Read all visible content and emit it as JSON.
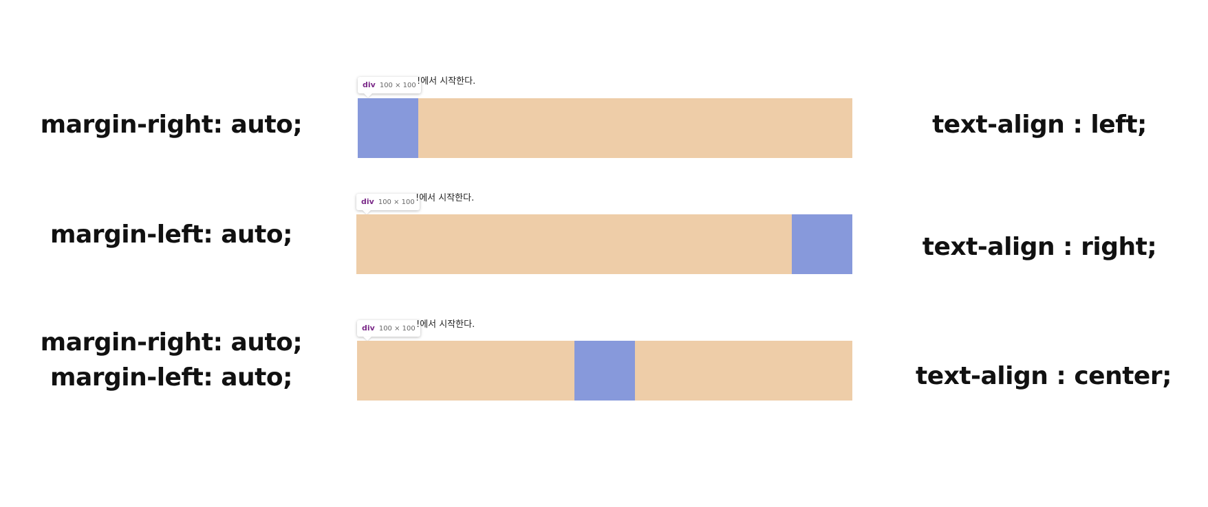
{
  "left_labels": {
    "row1": "margin-right: auto;",
    "row2": "margin-left: auto;",
    "row3_line1": "margin-right: auto;",
    "row3_line2": "margin-left: auto;"
  },
  "right_labels": {
    "row1": "text-align : left;",
    "row2": "text-align : right;",
    "row3": "text-align : center;"
  },
  "rows": [
    {
      "tooltip_tag": "div",
      "tooltip_dims": "100 × 100",
      "caption": "!에서 시작한다.",
      "box_position": "left"
    },
    {
      "tooltip_tag": "div",
      "tooltip_dims": "100 × 100",
      "caption": "!에서 시작한다.",
      "box_position": "right"
    },
    {
      "tooltip_tag": "div",
      "tooltip_dims": "100 × 100",
      "caption": "!에서 시작한다.",
      "box_position": "center"
    }
  ],
  "colors": {
    "bar": "#eecda8",
    "box": "#8799db",
    "tooltip_tag": "#7b2a89"
  }
}
